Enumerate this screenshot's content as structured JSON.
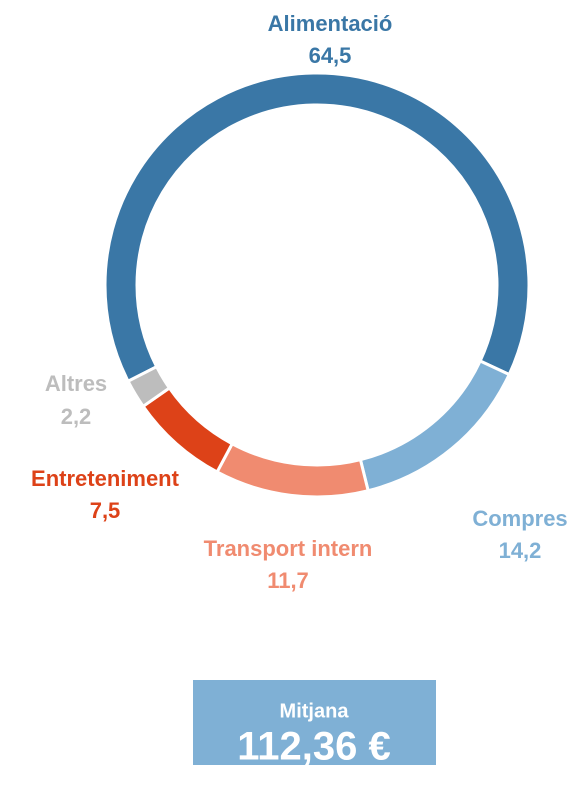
{
  "chart_data": {
    "type": "donut",
    "categories": [
      "Alimentació",
      "Compres",
      "Transport intern",
      "Entreteniment",
      "Altres"
    ],
    "values": [
      64.5,
      14.2,
      11.7,
      7.5,
      2.2
    ],
    "value_labels": [
      "64,5",
      "14,2",
      "11,7",
      "7,5",
      "2,2"
    ],
    "colors": [
      "#3a77a6",
      "#7fb0d5",
      "#f08b70",
      "#dd4218",
      "#bdbdbd"
    ]
  },
  "summary": {
    "label": "Mitjana",
    "value": "112,36 €"
  }
}
